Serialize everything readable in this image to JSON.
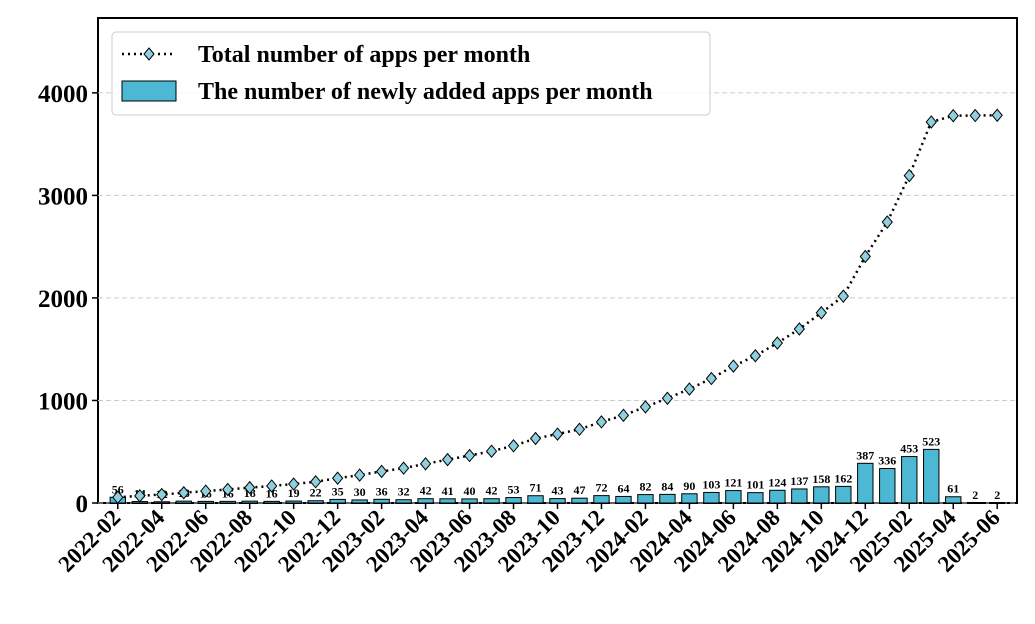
{
  "chart_data": {
    "type": "combo",
    "categories": [
      "2022-02",
      null,
      "2022-04",
      null,
      "2022-06",
      null,
      "2022-08",
      null,
      "2022-10",
      null,
      "2022-12",
      null,
      "2023-02",
      null,
      "2023-04",
      null,
      "2023-06",
      null,
      "2023-08",
      null,
      "2023-10",
      null,
      "2023-12",
      null,
      "2024-02",
      null,
      "2024-04",
      null,
      "2024-06",
      null,
      "2024-08",
      null,
      "2024-10",
      null,
      "2024-12",
      null,
      "2025-02",
      null,
      "2025-04",
      null,
      "2025-06"
    ],
    "series": [
      {
        "name": "Total number of apps per month",
        "type": "line",
        "color": "#8ecfe0",
        "values": [
          56,
          70,
          82,
          100,
          116,
          132,
          150,
          166,
          185,
          207,
          242,
          272,
          308,
          340,
          382,
          423,
          463,
          505,
          558,
          629,
          672,
          719,
          791,
          855,
          937,
          1021,
          1111,
          1214,
          1335,
          1436,
          1560,
          1697,
          1855,
          2017,
          2404,
          2740,
          3193,
          3716,
          3777,
          3779,
          3781
        ]
      },
      {
        "name": "The number of newly added apps per month",
        "type": "bar",
        "color": "#4db8d4",
        "values": [
          56,
          14,
          12,
          18,
          16,
          16,
          18,
          16,
          19,
          22,
          35,
          30,
          36,
          32,
          42,
          41,
          40,
          42,
          53,
          71,
          43,
          47,
          72,
          64,
          82,
          84,
          90,
          103,
          121,
          101,
          124,
          137,
          158,
          162,
          387,
          336,
          453,
          523,
          61,
          2,
          2
        ]
      }
    ],
    "ylim": [
      0,
      4730
    ],
    "yticks": [
      0,
      1000,
      2000,
      3000,
      4000
    ],
    "grid": true,
    "legend": "upper left"
  }
}
